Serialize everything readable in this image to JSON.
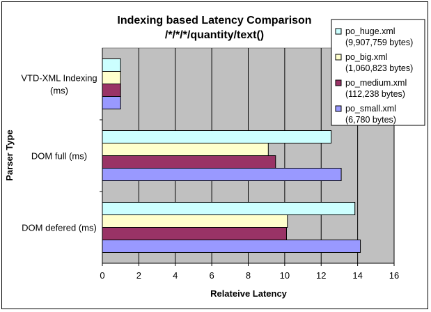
{
  "chart_data": {
    "type": "bar",
    "orientation": "horizontal",
    "title": "Indexing based Latency Comparison",
    "subtitle": "/*/*/*/quantity/text()",
    "xlabel": "Relateive Latency",
    "ylabel": "Parser Type",
    "xlim": [
      0,
      16
    ],
    "xticks": [
      "0",
      "2",
      "4",
      "6",
      "8",
      "10",
      "12",
      "14",
      "16"
    ],
    "grid": "vertical",
    "legend_position": "top-right",
    "categories": [
      {
        "label_lines": [
          "VTD-XML Indexing",
          "(ms)"
        ]
      },
      {
        "label_lines": [
          "DOM full (ms)"
        ]
      },
      {
        "label_lines": [
          "DOM defered (ms)"
        ]
      }
    ],
    "series": [
      {
        "name": "po_huge.xml",
        "size": "(9,907,759 bytes)",
        "color": "#ccffff",
        "values": [
          1,
          12.55,
          13.85
        ]
      },
      {
        "name": "po_big.xml",
        "size": "(1,060,823 bytes)",
        "color": "#ffffcc",
        "values": [
          1,
          9.1,
          10.15
        ]
      },
      {
        "name": "po_medium.xml",
        "size": "(112,238 bytes)",
        "color": "#993366",
        "values": [
          1,
          9.5,
          10.1
        ]
      },
      {
        "name": "po_small.xml",
        "size": "(6,780 bytes)",
        "color": "#9999ff",
        "values": [
          1,
          13.1,
          14.15
        ]
      }
    ],
    "plot_background": "#c0c0c0"
  }
}
